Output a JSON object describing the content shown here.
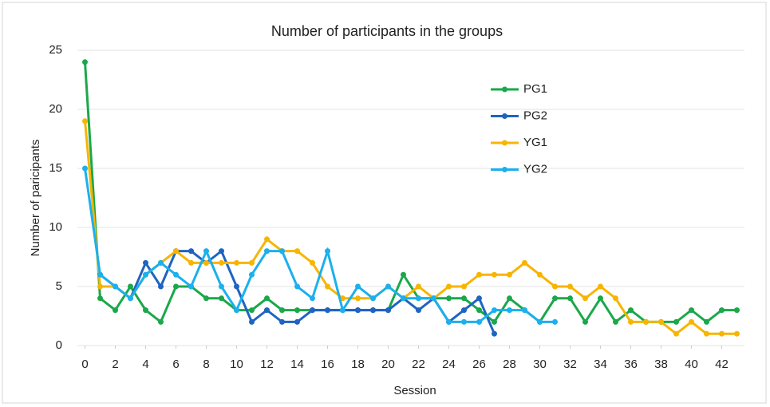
{
  "chart_data": {
    "type": "line",
    "title": "Number of participants in the groups",
    "x_label": "Session",
    "y_label": "Number of paricipants",
    "x": [
      0,
      1,
      2,
      3,
      4,
      5,
      6,
      7,
      8,
      9,
      10,
      11,
      12,
      13,
      14,
      15,
      16,
      17,
      18,
      19,
      20,
      21,
      22,
      23,
      24,
      25,
      26,
      27,
      28,
      29,
      30,
      31,
      32,
      33,
      34,
      35,
      36,
      37,
      38,
      39,
      40,
      41,
      42,
      43
    ],
    "xlim": [
      -0.5,
      43.5
    ],
    "xticks": [
      0,
      2,
      4,
      6,
      8,
      10,
      12,
      14,
      16,
      18,
      20,
      22,
      24,
      26,
      28,
      30,
      32,
      34,
      36,
      38,
      40,
      42
    ],
    "ylim": [
      0,
      25
    ],
    "yticks": [
      0,
      5,
      10,
      15,
      20,
      25
    ],
    "grid": true,
    "legend": "upper-right",
    "series": [
      {
        "name": "PG1",
        "color": "#1aa84a",
        "values": [
          24,
          4,
          3,
          5,
          3,
          2,
          5,
          5,
          4,
          4,
          3,
          3,
          4,
          3,
          3,
          3,
          3,
          3,
          3,
          3,
          3,
          6,
          4,
          4,
          4,
          4,
          3,
          2,
          4,
          3,
          2,
          4,
          4,
          2,
          4,
          2,
          3,
          2,
          2,
          2,
          3,
          2,
          3,
          3
        ]
      },
      {
        "name": "PG2",
        "color": "#1f64c0",
        "values": [
          null,
          6,
          5,
          4,
          7,
          5,
          8,
          8,
          7,
          8,
          5,
          2,
          3,
          2,
          2,
          3,
          3,
          3,
          3,
          3,
          3,
          4,
          3,
          4,
          2,
          3,
          4,
          1,
          null,
          null,
          null,
          null,
          null,
          null,
          null,
          null,
          null,
          null,
          null,
          null,
          null,
          null,
          null,
          null
        ]
      },
      {
        "name": "YG1",
        "color": "#f7b500",
        "values": [
          19,
          5,
          5,
          4,
          6,
          7,
          8,
          7,
          7,
          7,
          7,
          7,
          9,
          8,
          8,
          7,
          5,
          4,
          4,
          4,
          5,
          4,
          5,
          4,
          5,
          5,
          6,
          6,
          6,
          7,
          6,
          5,
          5,
          4,
          5,
          4,
          2,
          2,
          2,
          1,
          2,
          1,
          1,
          1
        ]
      },
      {
        "name": "YG2",
        "color": "#1bb0ee",
        "values": [
          15,
          6,
          5,
          4,
          6,
          7,
          6,
          5,
          8,
          5,
          3,
          6,
          8,
          8,
          5,
          4,
          8,
          3,
          5,
          4,
          5,
          4,
          4,
          4,
          2,
          2,
          2,
          3,
          3,
          3,
          2,
          2,
          null,
          null,
          null,
          null,
          null,
          null,
          null,
          null,
          null,
          null,
          null,
          null
        ]
      }
    ]
  }
}
